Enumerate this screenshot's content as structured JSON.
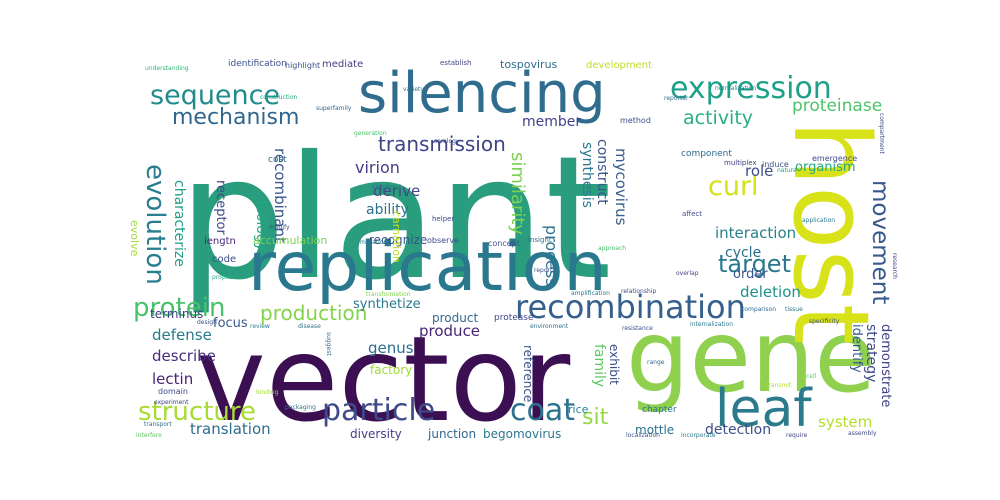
{
  "words": [
    {
      "text": "plant",
      "color": "#2a9d7e"
    },
    {
      "text": "vector",
      "color": "#3b0f52"
    },
    {
      "text": "gene",
      "color": "#8fd14f"
    },
    {
      "text": "host",
      "color": "#d8e219"
    },
    {
      "text": "replication",
      "color": "#2a788e"
    },
    {
      "text": "silencing",
      "color": "#2f6c8e"
    },
    {
      "text": "leaf",
      "color": "#2b7b8d"
    },
    {
      "text": "expression",
      "color": "#1fa088"
    },
    {
      "text": "recombination",
      "color": "#35608d"
    },
    {
      "text": "particle",
      "color": "#3e4a89"
    },
    {
      "text": "coat",
      "color": "#2c728e"
    },
    {
      "text": "structure",
      "color": "#a8db34"
    },
    {
      "text": "sequence",
      "color": "#228c8d"
    },
    {
      "text": "protein",
      "color": "#4ac16d"
    },
    {
      "text": "evolution",
      "color": "#287d8e"
    },
    {
      "text": "movement",
      "color": "#38598c"
    },
    {
      "text": "mechanism",
      "color": "#31678e"
    },
    {
      "text": "curl",
      "color": "#d5e21a"
    },
    {
      "text": "target",
      "color": "#2a788e"
    },
    {
      "text": "production",
      "color": "#84d44b"
    },
    {
      "text": "transmission",
      "color": "#404387"
    },
    {
      "text": "activity",
      "color": "#2ab07f"
    },
    {
      "text": "proteinase",
      "color": "#4ec36b"
    },
    {
      "text": "sit",
      "color": "#95d840"
    },
    {
      "text": "similarity",
      "color": "#7ad151"
    },
    {
      "text": "process",
      "color": "#2c718e"
    },
    {
      "text": "recombinant",
      "color": "#39568c"
    },
    {
      "text": "virion",
      "color": "#433e85"
    },
    {
      "text": "derive",
      "color": "#3f4889"
    },
    {
      "text": "ability",
      "color": "#2c728e"
    },
    {
      "text": "role",
      "color": "#3c4f8a"
    },
    {
      "text": "interaction",
      "color": "#26828e"
    },
    {
      "text": "cycle",
      "color": "#2e6e8e"
    },
    {
      "text": "order",
      "color": "#3b528b"
    },
    {
      "text": "deletion",
      "color": "#21918c"
    },
    {
      "text": "member",
      "color": "#414287"
    },
    {
      "text": "organism",
      "color": "#22a884"
    },
    {
      "text": "produce",
      "color": "#482475"
    },
    {
      "text": "synthesis",
      "color": "#2a788e"
    },
    {
      "text": "construct",
      "color": "#3a548c"
    },
    {
      "text": "mycovirus",
      "color": "#355f8d"
    },
    {
      "text": "biology",
      "color": "#22a884"
    },
    {
      "text": "characterize",
      "color": "#1f9e89"
    },
    {
      "text": "receptor",
      "color": "#3e4989"
    },
    {
      "text": "defense",
      "color": "#287c8e"
    },
    {
      "text": "describe",
      "color": "#472d7b"
    },
    {
      "text": "lectin",
      "color": "#482576"
    },
    {
      "text": "translation",
      "color": "#2f6c8e"
    },
    {
      "text": "terminus",
      "color": "#433d84"
    },
    {
      "text": "genus",
      "color": "#2c718e"
    },
    {
      "text": "strategy",
      "color": "#3e4a89"
    },
    {
      "text": "identify",
      "color": "#375a8c"
    },
    {
      "text": "demonstrate",
      "color": "#424086"
    },
    {
      "text": "detection",
      "color": "#3d4d8a"
    },
    {
      "text": "system",
      "color": "#b5de2b"
    },
    {
      "text": "family",
      "color": "#5ec962"
    },
    {
      "text": "diversity",
      "color": "#433e85"
    },
    {
      "text": "junction",
      "color": "#31678e"
    },
    {
      "text": "begomovirus",
      "color": "#2a788e"
    },
    {
      "text": "mottle",
      "color": "#2d708e"
    },
    {
      "text": "reference",
      "color": "#3b528b"
    },
    {
      "text": "exhibit",
      "color": "#3d4e8a"
    },
    {
      "text": "focus",
      "color": "#365d8d"
    },
    {
      "text": "product",
      "color": "#2f6b8e"
    },
    {
      "text": "synthetize",
      "color": "#2a788e"
    },
    {
      "text": "factory",
      "color": "#9fda3a"
    },
    {
      "text": "recognize",
      "color": "#3b528b"
    },
    {
      "text": "carnation",
      "color": "#c2df23"
    },
    {
      "text": "accumulation",
      "color": "#7ad151"
    },
    {
      "text": "iengtn",
      "color": "#482878"
    },
    {
      "text": "code",
      "color": "#3b518b"
    },
    {
      "text": "evolve",
      "color": "#a2da37"
    },
    {
      "text": "rice",
      "color": "#25848e"
    },
    {
      "text": "chapter",
      "color": "#2c718e"
    },
    {
      "text": "protease",
      "color": "#3f4788"
    },
    {
      "text": "tospovirus",
      "color": "#2e6e8e"
    },
    {
      "text": "development",
      "color": "#c0df25"
    },
    {
      "text": "identification",
      "color": "#3c4f8a"
    },
    {
      "text": "mediate",
      "color": "#424186"
    },
    {
      "text": "highlight",
      "color": "#3a538b"
    },
    {
      "text": "establish",
      "color": "#414487"
    },
    {
      "text": "understanding",
      "color": "#35b779"
    },
    {
      "text": "construction",
      "color": "#22a884"
    },
    {
      "text": "superfamily",
      "color": "#31688e"
    },
    {
      "text": "cost",
      "color": "#2d708e"
    },
    {
      "text": "component",
      "color": "#2f6b8e"
    },
    {
      "text": "multiplex",
      "color": "#414287"
    },
    {
      "text": "induce",
      "color": "#3b528b"
    },
    {
      "text": "emergence",
      "color": "#3e4a89"
    },
    {
      "text": "mutation",
      "color": "#2a788e"
    },
    {
      "text": "observe",
      "color": "#3f4889"
    },
    {
      "text": "concept",
      "color": "#3b528b"
    },
    {
      "text": "insight",
      "color": "#2e6d8e"
    },
    {
      "text": "approach",
      "color": "#4ac16d"
    },
    {
      "text": "affect",
      "color": "#3d4e8a"
    },
    {
      "text": "application",
      "color": "#2a788e"
    },
    {
      "text": "modify",
      "color": "#3b528b"
    },
    {
      "text": "helper",
      "color": "#414487"
    },
    {
      "text": "kingdom",
      "color": "#2d708e"
    },
    {
      "text": "propose",
      "color": "#25ab82"
    },
    {
      "text": "transformation",
      "color": "#84d44b"
    },
    {
      "text": "report",
      "color": "#3b528b"
    },
    {
      "text": "amplification",
      "color": "#2a788e"
    },
    {
      "text": "relationship",
      "color": "#3e4a89"
    },
    {
      "text": "comparison",
      "color": "#31688e"
    },
    {
      "text": "tissue",
      "color": "#2c728e"
    },
    {
      "text": "overlap",
      "color": "#414287"
    },
    {
      "text": "specificity",
      "color": "#3b528b"
    },
    {
      "text": "internalization",
      "color": "#2a788e"
    },
    {
      "text": "resistance",
      "color": "#3d4e8a"
    },
    {
      "text": "environment",
      "color": "#2d708e"
    },
    {
      "text": "transmit",
      "color": "#b5de2b"
    },
    {
      "text": "localization",
      "color": "#3b528b"
    },
    {
      "text": "incorporate",
      "color": "#2a788e"
    },
    {
      "text": "require",
      "color": "#414487"
    },
    {
      "text": "assembly",
      "color": "#3e4a89"
    },
    {
      "text": "transport",
      "color": "#2c718e"
    },
    {
      "text": "interfere",
      "color": "#5ec962"
    },
    {
      "text": "design",
      "color": "#3b528b"
    },
    {
      "text": "review",
      "color": "#2a788e"
    },
    {
      "text": "disease",
      "color": "#2d708e"
    },
    {
      "text": "suggest",
      "color": "#31688e"
    },
    {
      "text": "domain",
      "color": "#3e4a89"
    },
    {
      "text": "experiment",
      "color": "#414487"
    },
    {
      "text": "packaging",
      "color": "#2a788e"
    },
    {
      "text": "binding",
      "color": "#a2da37"
    },
    {
      "text": "variety",
      "color": "#2c718e"
    },
    {
      "text": "serology",
      "color": "#3b528b"
    },
    {
      "text": "generation",
      "color": "#4ac16d"
    },
    {
      "text": "method",
      "color": "#3b528b"
    },
    {
      "text": "reporter",
      "color": "#2d708e"
    },
    {
      "text": "nature",
      "color": "#22a884"
    },
    {
      "text": "normalization",
      "color": "#2a788e"
    },
    {
      "text": "compartment",
      "color": "#3e4a89"
    },
    {
      "text": "research",
      "color": "#414487"
    },
    {
      "text": "range",
      "color": "#31688e"
    },
    {
      "text": "cell",
      "color": "#5ec962"
    }
  ]
}
